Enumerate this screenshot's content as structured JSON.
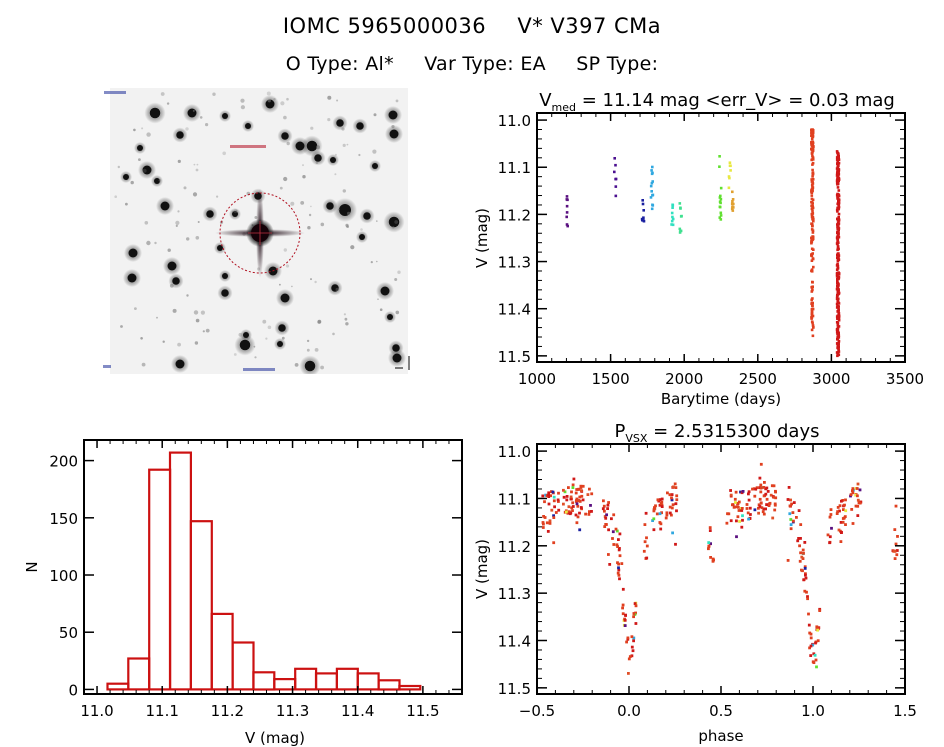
{
  "header": {
    "id_label": "IOMC 5965000036",
    "star_name": "V* V397 CMa",
    "o_type": "O Type: Al*",
    "var_type": "Var Type: EA",
    "sp_type": "SP Type:"
  },
  "sky_image": {
    "description": "DSS finder chart centered on target",
    "marker": "red dotted circle"
  },
  "chart_data": [
    {
      "id": "light-curve",
      "type": "scatter",
      "title_main": "V",
      "title_sub": "med",
      "title_rest": " = 11.14 mag <err_V> = 0.03 mag",
      "xlabel": "Barytime (days)",
      "ylabel": "V (mag)",
      "xlim": [
        1000,
        3500
      ],
      "ylim": [
        11.513,
        10.985
      ],
      "xticks": [
        1000,
        1500,
        2000,
        2500,
        3000,
        3500
      ],
      "yticks": [
        11.0,
        11.1,
        11.2,
        11.3,
        11.4,
        11.5
      ],
      "ytick_labels": [
        "11.0",
        "11.1",
        "11.2",
        "11.3",
        "11.4",
        "11.5"
      ],
      "groups": [
        {
          "x": 1205,
          "ymin": 11.145,
          "ymax": 11.23,
          "n": 8,
          "color": "#5a1080"
        },
        {
          "x": 1530,
          "ymin": 11.08,
          "ymax": 11.17,
          "n": 7,
          "color": "#4b1090"
        },
        {
          "x": 1720,
          "ymin": 11.145,
          "ymax": 11.215,
          "n": 8,
          "color": "#1a20a0"
        },
        {
          "x": 1780,
          "ymin": 11.085,
          "ymax": 11.19,
          "n": 14,
          "color": "#30a8e0"
        },
        {
          "x": 1920,
          "ymin": 11.175,
          "ymax": 11.225,
          "n": 9,
          "color": "#30e0c0"
        },
        {
          "x": 1975,
          "ymin": 11.155,
          "ymax": 11.245,
          "n": 9,
          "color": "#40e090"
        },
        {
          "x": 2245,
          "ymin": 11.065,
          "ymax": 11.215,
          "n": 14,
          "color": "#60e030"
        },
        {
          "x": 2310,
          "ymin": 11.09,
          "ymax": 11.15,
          "n": 7,
          "color": "#e8e840"
        },
        {
          "x": 2330,
          "ymin": 11.15,
          "ymax": 11.22,
          "n": 9,
          "color": "#e0a030"
        },
        {
          "x": 2870,
          "ymin": 11.02,
          "ymax": 11.46,
          "n": 180,
          "color": "#e04020"
        },
        {
          "x": 3045,
          "ymin": 11.065,
          "ymax": 11.5,
          "n": 260,
          "color": "#d01818"
        }
      ]
    },
    {
      "id": "histogram",
      "type": "bar",
      "xlabel": "V (mag)",
      "ylabel": "N",
      "xlim": [
        10.98,
        11.56
      ],
      "ylim": [
        -4,
        218
      ],
      "xticks": [
        11.0,
        11.1,
        11.2,
        11.3,
        11.4,
        11.5
      ],
      "xtick_labels": [
        "11.0",
        "11.1",
        "11.2",
        "11.3",
        "11.4",
        "11.5"
      ],
      "yticks": [
        0,
        50,
        100,
        150,
        200
      ],
      "bin_edges": [
        11.016,
        11.048,
        11.08,
        11.112,
        11.144,
        11.176,
        11.208,
        11.24,
        11.272,
        11.304,
        11.336,
        11.368,
        11.4,
        11.432,
        11.464,
        11.496
      ],
      "values": [
        5,
        27,
        192,
        207,
        147,
        66,
        41,
        15,
        9,
        18,
        14,
        18,
        14,
        8,
        3
      ],
      "color": "#cc1111"
    },
    {
      "id": "phase-curve",
      "type": "scatter",
      "title_main": "P",
      "title_sub": "VSX",
      "title_rest": " = 2.5315300 days",
      "xlabel": "phase",
      "ylabel": "V (mag)",
      "xlim": [
        -0.5,
        1.5
      ],
      "ylim": [
        11.513,
        10.985
      ],
      "xticks": [
        -0.5,
        0.0,
        0.5,
        1.0,
        1.5
      ],
      "xtick_labels": [
        "−0.5",
        "0.0",
        "0.5",
        "1.0",
        "1.5"
      ],
      "yticks": [
        11.0,
        11.1,
        11.2,
        11.3,
        11.4,
        11.5
      ],
      "ytick_labels": [
        "11.0",
        "11.1",
        "11.2",
        "11.3",
        "11.4",
        "11.5"
      ],
      "period_days": 2.53153,
      "eclipse_primary_phase": 0.0,
      "eclipse_primary_depth": 11.49,
      "max_brightness": 11.1,
      "curve": [
        [
          -0.5,
          11.12
        ],
        [
          -0.45,
          11.12
        ],
        [
          -0.4,
          11.12
        ],
        [
          -0.35,
          11.11
        ],
        [
          -0.3,
          11.1
        ],
        [
          -0.25,
          11.1
        ],
        [
          -0.2,
          11.11
        ],
        [
          -0.15,
          11.12
        ],
        [
          -0.1,
          11.14
        ],
        [
          -0.07,
          11.18
        ],
        [
          -0.04,
          11.28
        ],
        [
          -0.02,
          11.38
        ],
        [
          0.0,
          11.45
        ],
        [
          0.02,
          11.4
        ],
        [
          0.04,
          11.32
        ],
        [
          0.07,
          11.2
        ],
        [
          0.1,
          11.15
        ],
        [
          0.15,
          11.14
        ],
        [
          0.2,
          11.12
        ],
        [
          0.25,
          11.1
        ],
        [
          0.3,
          11.11
        ],
        [
          0.4,
          11.14
        ],
        [
          0.45,
          11.2
        ],
        [
          0.5,
          11.22
        ],
        [
          0.55,
          11.15
        ],
        [
          0.6,
          11.12
        ]
      ],
      "colors": [
        "#e04020",
        "#d01818",
        "#e05028",
        "#e8e840",
        "#60e030",
        "#30a8e0",
        "#1a20a0",
        "#5a1080",
        "#30e0c0"
      ]
    }
  ]
}
